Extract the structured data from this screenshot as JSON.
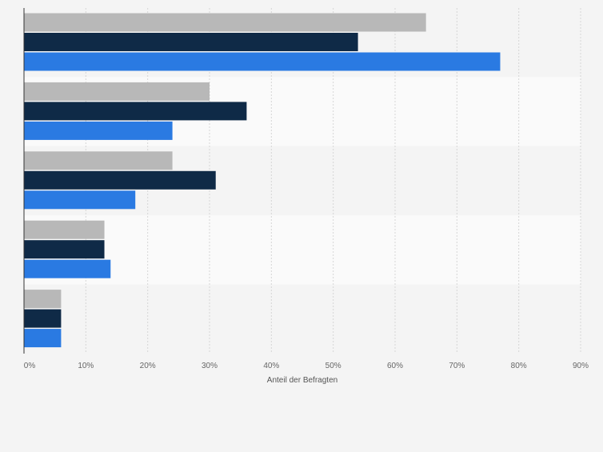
{
  "chart_data": {
    "type": "bar",
    "orientation": "horizontal",
    "categories": [
      "",
      "",
      "",
      "",
      ""
    ],
    "series": [
      {
        "values": [
          65,
          30,
          24,
          13,
          6
        ],
        "color": "#b8b8b8"
      },
      {
        "values": [
          54,
          36,
          31,
          13,
          6
        ],
        "color": "#0f2a47"
      },
      {
        "values": [
          77,
          24,
          18,
          14,
          6
        ],
        "color": "#2a7ae2"
      }
    ],
    "xlabel": "Anteil der Befragten",
    "xlim": [
      0,
      90
    ],
    "xticks": [
      0,
      10,
      20,
      30,
      40,
      50,
      60,
      70,
      80,
      90
    ],
    "tick_format": "{v}%",
    "grid": true,
    "legend": "none",
    "band_colors": [
      "#f4f4f4",
      "#fafafa"
    ]
  }
}
